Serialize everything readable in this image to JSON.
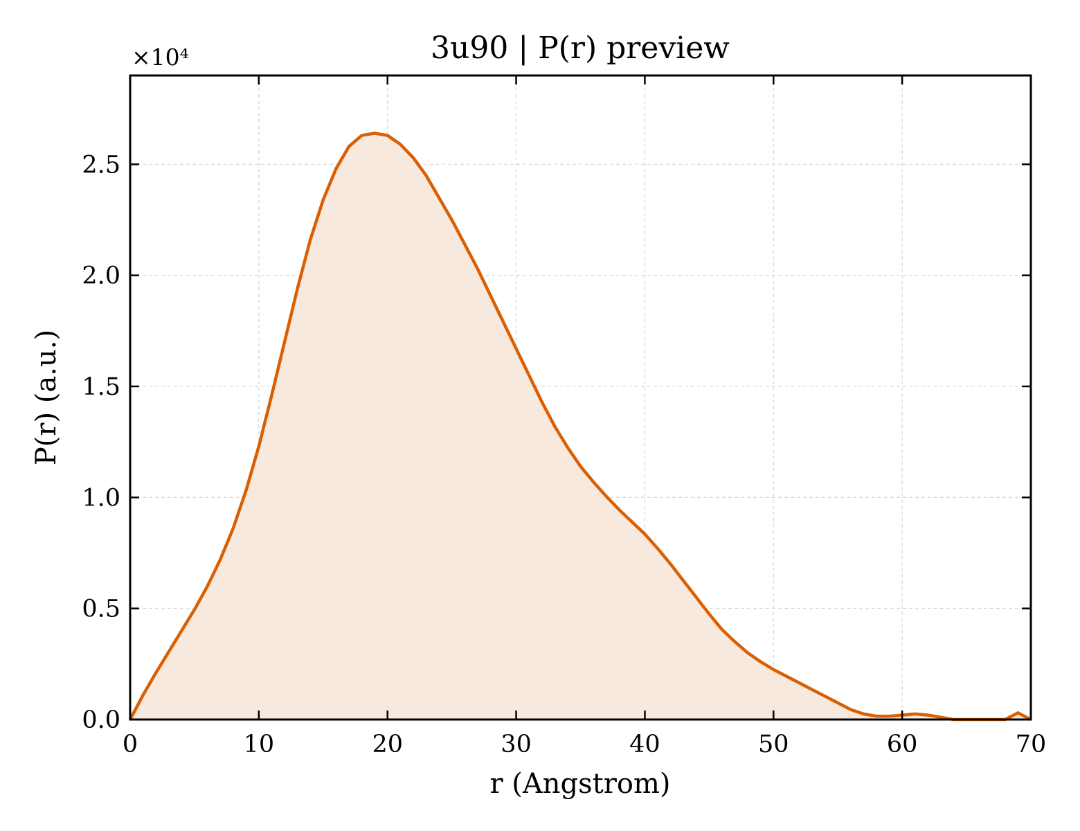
{
  "chart_data": {
    "type": "area",
    "title": "3u90 | P(r) preview",
    "xlabel": "r (Angstrom)",
    "ylabel": "P(r) (a.u.)",
    "y_offset_label": "×10⁴",
    "y_scale_factor": 10000,
    "xlim": [
      0,
      70
    ],
    "ylim": [
      0,
      29000
    ],
    "x_ticks": [
      0,
      10,
      20,
      30,
      40,
      50,
      60,
      70
    ],
    "x_tick_labels": [
      "0",
      "10",
      "20",
      "30",
      "40",
      "50",
      "60",
      "70"
    ],
    "y_ticks": [
      0,
      5000,
      10000,
      15000,
      20000,
      25000
    ],
    "y_tick_labels": [
      "0.0",
      "0.5",
      "1.0",
      "1.5",
      "2.0",
      "2.5"
    ],
    "grid": true,
    "colors": {
      "line": "#d95f02",
      "fill": "#f8e9de",
      "grid": "#d9d9d9"
    },
    "series": [
      {
        "x": [
          0,
          1,
          2,
          3,
          4,
          5,
          6,
          7,
          8,
          9,
          10,
          11,
          12,
          13,
          14,
          15,
          16,
          17,
          18,
          19,
          20,
          21,
          22,
          23,
          24,
          25,
          26,
          27,
          28,
          29,
          30,
          31,
          32,
          33,
          34,
          35,
          36,
          37,
          38,
          39,
          40,
          41,
          42,
          43,
          44,
          45,
          46,
          47,
          48,
          49,
          50,
          51,
          52,
          53,
          54,
          55,
          56,
          57,
          58,
          59,
          60,
          61,
          62,
          63,
          64,
          65,
          66,
          67,
          68,
          69,
          70
        ],
        "values": [
          0,
          1100,
          2100,
          3050,
          4000,
          4950,
          6000,
          7200,
          8600,
          10300,
          12300,
          14600,
          17000,
          19400,
          21600,
          23400,
          24800,
          25800,
          26300,
          26400,
          26300,
          25900,
          25300,
          24500,
          23500,
          22500,
          21400,
          20300,
          19100,
          17900,
          16700,
          15500,
          14300,
          13200,
          12250,
          11400,
          10700,
          10050,
          9450,
          8900,
          8350,
          7700,
          7000,
          6250,
          5500,
          4750,
          4050,
          3500,
          3000,
          2600,
          2250,
          1950,
          1650,
          1350,
          1050,
          750,
          450,
          250,
          150,
          150,
          200,
          250,
          200,
          100,
          0,
          0,
          0,
          0,
          0,
          300,
          0
        ]
      }
    ]
  }
}
